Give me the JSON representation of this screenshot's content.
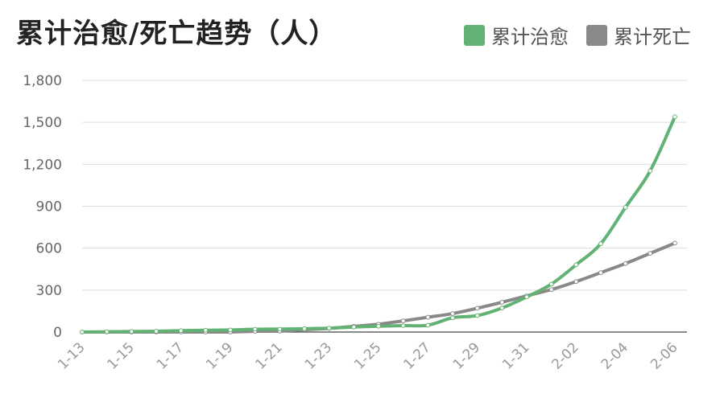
{
  "chart_data": {
    "type": "line",
    "title": "累计治愈/死亡趋势（人）",
    "xlabel": "",
    "ylabel": "",
    "ylim": [
      0,
      1800
    ],
    "yticks": [
      0,
      300,
      600,
      900,
      1200,
      1500,
      1800
    ],
    "ytick_labels": [
      "0",
      "300",
      "600",
      "900",
      "1,200",
      "1,500",
      "1,800"
    ],
    "x": [
      "1-13",
      "1-14",
      "1-15",
      "1-16",
      "1-17",
      "1-18",
      "1-19",
      "1-20",
      "1-21",
      "1-22",
      "1-23",
      "1-24",
      "1-25",
      "1-26",
      "1-27",
      "1-28",
      "1-29",
      "1-30",
      "1-31",
      "2-01",
      "2-02",
      "2-03",
      "2-04",
      "2-05",
      "2-06"
    ],
    "xtick_labels": [
      "1-13",
      "1-15",
      "1-17",
      "1-19",
      "1-21",
      "1-23",
      "1-25",
      "1-27",
      "1-29",
      "1-31",
      "2-02",
      "2-04",
      "2-06"
    ],
    "grid": true,
    "legend_position": "top-right",
    "series": [
      {
        "name": "累计治愈",
        "color": "#62b274",
        "values": [
          0,
          2,
          4,
          6,
          10,
          13,
          15,
          20,
          21,
          24,
          28,
          36,
          42,
          46,
          49,
          102,
          118,
          172,
          251,
          343,
          481,
          632,
          892,
          1153,
          1540
        ]
      },
      {
        "name": "累计死亡",
        "color": "#898989",
        "values": [
          0,
          0,
          0,
          0,
          0,
          0,
          0,
          5,
          7,
          17,
          26,
          41,
          56,
          80,
          106,
          132,
          170,
          213,
          259,
          304,
          361,
          425,
          490,
          563,
          636
        ]
      }
    ]
  }
}
